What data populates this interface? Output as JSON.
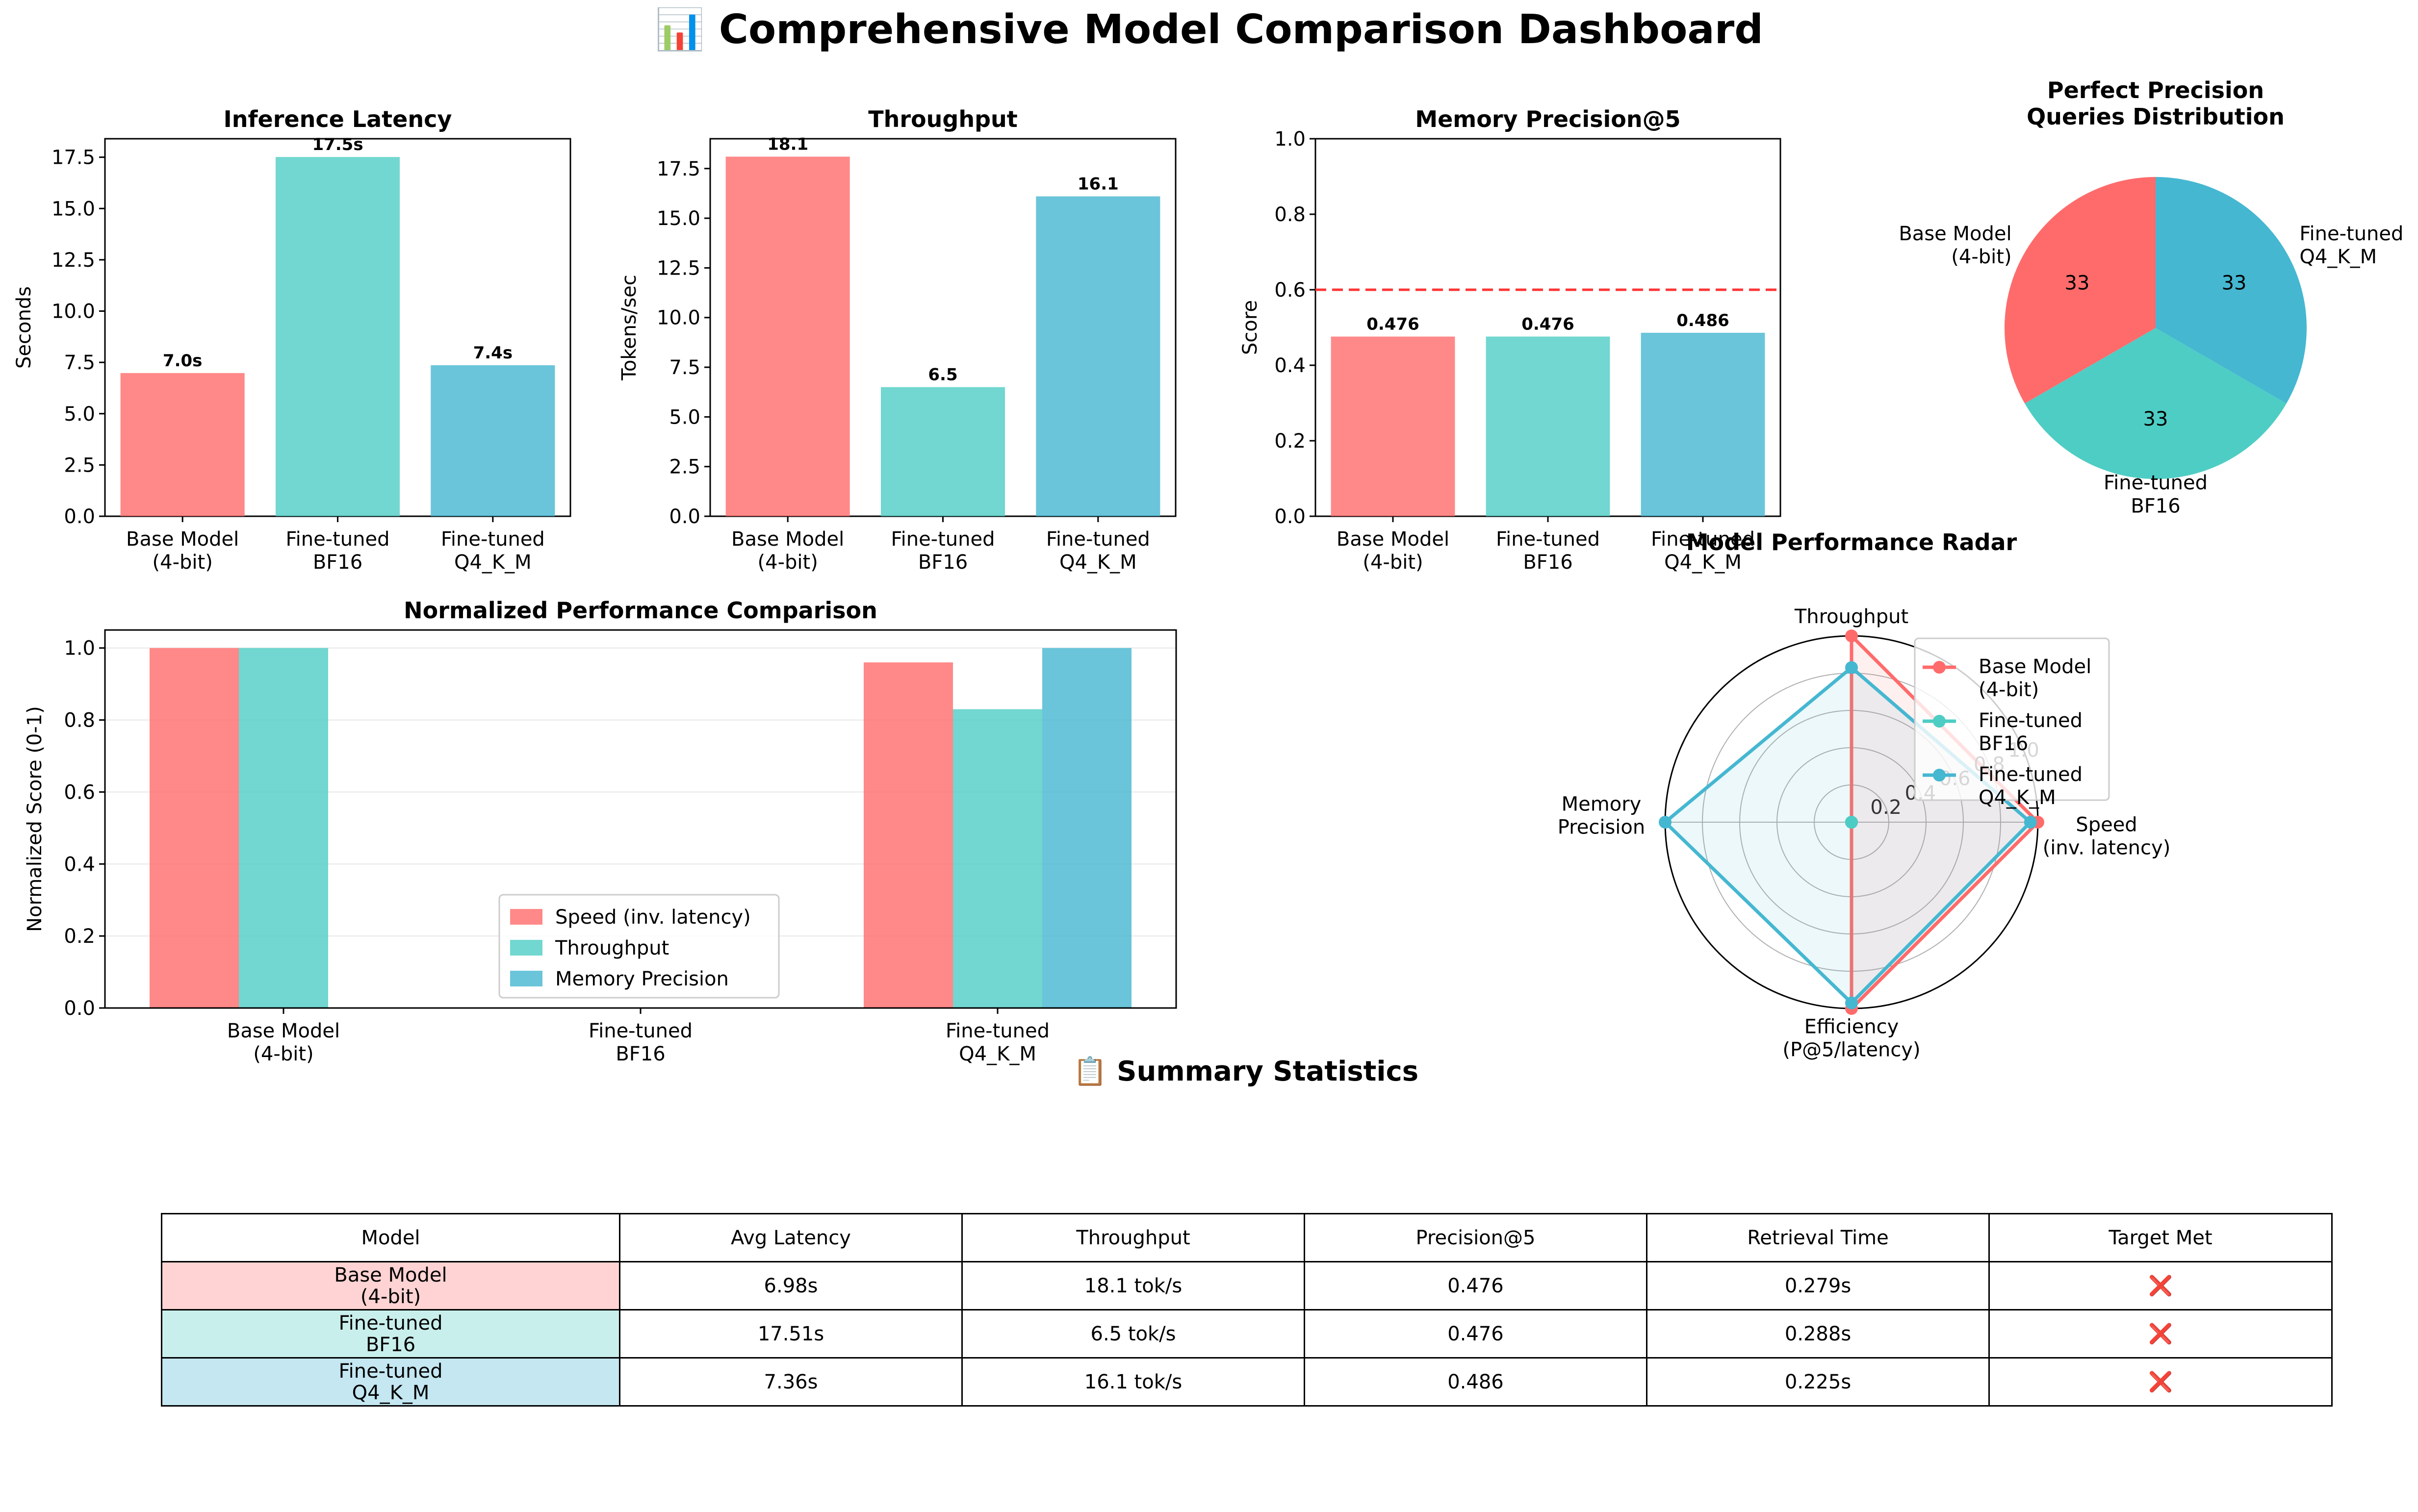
{
  "title": "📊 Comprehensive Model Comparison Dashboard",
  "colors": {
    "base": "#FF6B6B",
    "bf16": "#4ECDC4",
    "q4": "#45B7D1",
    "target_line": "#FF3333"
  },
  "chart_data": [
    {
      "id": "latency",
      "type": "bar",
      "title": "Inference Latency",
      "ylabel": "Seconds",
      "xlabel": "",
      "categories": [
        "Base Model\n(4-bit)",
        "Fine-tuned\nBF16",
        "Fine-tuned\nQ4_K_M"
      ],
      "values": [
        6.98,
        17.51,
        7.36
      ],
      "data_labels": [
        "7.0s",
        "17.5s",
        "7.4s"
      ],
      "ylim": [
        0,
        18.4
      ],
      "yticks": [
        0,
        2.5,
        5,
        7.5,
        10,
        12.5,
        15,
        17.5
      ],
      "ytick_labels": [
        "0.0",
        "2.5",
        "5.0",
        "7.5",
        "10.0",
        "12.5",
        "15.0",
        "17.5"
      ],
      "grid": false
    },
    {
      "id": "throughput",
      "type": "bar",
      "title": "Throughput",
      "ylabel": "Tokens/sec",
      "xlabel": "",
      "categories": [
        "Base Model\n(4-bit)",
        "Fine-tuned\nBF16",
        "Fine-tuned\nQ4_K_M"
      ],
      "values": [
        18.1,
        6.5,
        16.1
      ],
      "data_labels": [
        "18.1",
        "6.5",
        "16.1"
      ],
      "ylim": [
        0,
        19
      ],
      "yticks": [
        0,
        2.5,
        5,
        7.5,
        10,
        12.5,
        15,
        17.5
      ],
      "ytick_labels": [
        "0.0",
        "2.5",
        "5.0",
        "7.5",
        "10.0",
        "12.5",
        "15.0",
        "17.5"
      ],
      "grid": false
    },
    {
      "id": "precision",
      "type": "bar",
      "title": "Memory Precision@5",
      "ylabel": "Score",
      "xlabel": "",
      "categories": [
        "Base Model\n(4-bit)",
        "Fine-tuned\nBF16",
        "Fine-tuned\nQ4_K_M"
      ],
      "values": [
        0.476,
        0.476,
        0.486
      ],
      "data_labels": [
        "0.476",
        "0.476",
        "0.486"
      ],
      "ylim": [
        0,
        1
      ],
      "yticks": [
        0,
        0.2,
        0.4,
        0.6,
        0.8,
        1.0
      ],
      "ytick_labels": [
        "0.0",
        "0.2",
        "0.4",
        "0.6",
        "0.8",
        "1.0"
      ],
      "target_line": 0.6,
      "grid": false
    },
    {
      "id": "pie",
      "type": "pie",
      "title": "Perfect Precision\nQueries Distribution",
      "labels": [
        "Base Model\n(4-bit)",
        "Fine-tuned\nBF16",
        "Fine-tuned\nQ4_K_M"
      ],
      "values": [
        1,
        1,
        1
      ],
      "slice_labels": [
        "33",
        "33",
        "33"
      ]
    },
    {
      "id": "normalized",
      "type": "bar",
      "title": "Normalized Performance Comparison",
      "ylabel": "Normalized Score (0-1)",
      "xlabel": "",
      "categories": [
        "Base Model\n(4-bit)",
        "Fine-tuned\nBF16",
        "Fine-tuned\nQ4_K_M"
      ],
      "series": [
        {
          "name": "Speed (inv. latency)",
          "values": [
            1.0,
            0.0,
            0.96
          ]
        },
        {
          "name": "Throughput",
          "values": [
            1.0,
            0.0,
            0.83
          ]
        },
        {
          "name": "Memory Precision",
          "values": [
            0.0,
            0.0,
            1.0
          ]
        }
      ],
      "ylim": [
        0,
        1.05
      ],
      "yticks": [
        0,
        0.2,
        0.4,
        0.6,
        0.8,
        1.0
      ],
      "ytick_labels": [
        "0.0",
        "0.2",
        "0.4",
        "0.6",
        "0.8",
        "1.0"
      ],
      "grid": true,
      "legend": "lower-center"
    },
    {
      "id": "radar",
      "type": "radar",
      "title": "Model Performance Radar",
      "axes": [
        "Throughput",
        "Speed\n(inv. latency)",
        "Efficiency\n(P@5/latency)",
        "Memory\nPrecision"
      ],
      "rlim": [
        0,
        1
      ],
      "rticks": [
        0.2,
        0.4,
        0.6,
        0.8,
        1.0
      ],
      "rtick_labels": [
        "0.2",
        "0.4",
        "0.6",
        "0.8",
        "1.0"
      ],
      "series": [
        {
          "name": "Base Model\n(4-bit)",
          "values": [
            1.0,
            1.0,
            1.0,
            0.0
          ]
        },
        {
          "name": "Fine-tuned\nBF16",
          "values": [
            0.0,
            0.0,
            0.0,
            0.0
          ]
        },
        {
          "name": "Fine-tuned\nQ4_K_M",
          "values": [
            0.83,
            0.96,
            0.97,
            1.0
          ]
        }
      ],
      "legend": "upper-right"
    }
  ],
  "summary": {
    "title": "📋 Summary Statistics",
    "columns": [
      "Model",
      "Avg Latency",
      "Throughput",
      "Precision@5",
      "Retrieval Time",
      "Target Met"
    ],
    "rows": [
      {
        "model": "Base Model\n(4-bit)",
        "latency": "6.98s",
        "throughput": "18.1 tok/s",
        "precision": "0.476",
        "retrieval": "0.279s",
        "target": "❌"
      },
      {
        "model": "Fine-tuned\nBF16",
        "latency": "17.51s",
        "throughput": "6.5 tok/s",
        "precision": "0.476",
        "retrieval": "0.288s",
        "target": "❌"
      },
      {
        "model": "Fine-tuned\nQ4_K_M",
        "latency": "7.36s",
        "throughput": "16.1 tok/s",
        "precision": "0.486",
        "retrieval": "0.225s",
        "target": "❌"
      }
    ],
    "row_colors": [
      "#FFD3D3",
      "#C9EFEC",
      "#C4E7F1"
    ]
  }
}
